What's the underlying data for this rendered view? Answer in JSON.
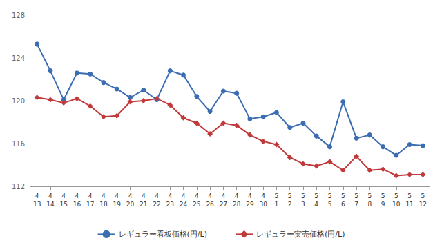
{
  "chart_data": {
    "type": "line",
    "categories": [
      "4\n13",
      "4\n14",
      "4\n15",
      "4\n16",
      "4\n17",
      "4\n18",
      "4\n19",
      "4\n20",
      "4\n21",
      "4\n22",
      "4\n23",
      "4\n24",
      "4\n25",
      "4\n26",
      "4\n27",
      "4\n28",
      "4\n29",
      "4\n30",
      "5\n1",
      "5\n2",
      "5\n3",
      "5\n4",
      "5\n5",
      "5\n6",
      "5\n7",
      "5\n8",
      "5\n9",
      "5\n10",
      "5\n11",
      "5\n12"
    ],
    "series": [
      {
        "name": "レギュラー看板価格(円/L)",
        "color": "#3b6db3",
        "marker": "circle",
        "values": [
          125.3,
          122.8,
          120.1,
          122.6,
          122.5,
          121.7,
          121.1,
          120.3,
          121.0,
          120.1,
          122.8,
          122.4,
          120.4,
          119.0,
          120.9,
          120.7,
          118.3,
          118.5,
          118.9,
          117.5,
          117.9,
          116.7,
          115.7,
          119.9,
          116.5,
          116.8,
          115.7,
          114.9,
          115.9,
          115.8
        ]
      },
      {
        "name": "レギュラー実売価格(円/L)",
        "color": "#c0393b",
        "marker": "diamond",
        "values": [
          120.3,
          120.1,
          119.8,
          120.2,
          119.5,
          118.5,
          118.6,
          119.9,
          120.0,
          120.2,
          119.6,
          118.4,
          117.9,
          116.9,
          117.9,
          117.7,
          116.8,
          116.2,
          115.9,
          114.7,
          114.1,
          113.9,
          114.3,
          113.5,
          114.8,
          113.5,
          113.6,
          113.0,
          113.1,
          113.1
        ]
      }
    ],
    "ylim": [
      112,
      128
    ],
    "yticks": [
      112,
      116,
      120,
      124,
      128
    ],
    "grid": false,
    "legend": "bottom"
  }
}
